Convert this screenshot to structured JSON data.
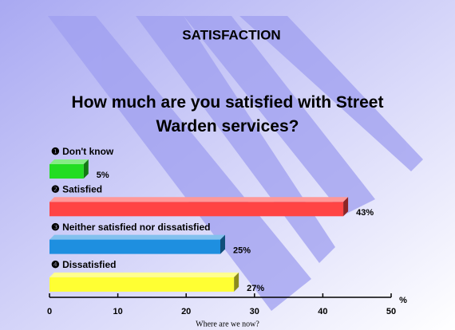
{
  "chart_data": {
    "type": "bar",
    "orientation": "horizontal",
    "title": "SATISFACTION",
    "subtitle": "How much are you satisfied with Street Warden services?",
    "categories": [
      "❶ Don't know",
      "❷ Satisfied",
      "❸ Neither satisfied nor dissatisfied",
      "❹ Dissatisfied"
    ],
    "values": [
      5,
      43,
      25,
      27
    ],
    "value_labels": [
      "5%",
      "43%",
      "25%",
      "27%"
    ],
    "colors": [
      "#22dd22",
      "#ff4444",
      "#1e8fe0",
      "#ffff33"
    ],
    "xlim": [
      0,
      50
    ],
    "xticks": [
      0,
      10,
      20,
      30,
      40,
      50
    ],
    "x_axis_label": "%",
    "footer": "Where are we now?"
  }
}
